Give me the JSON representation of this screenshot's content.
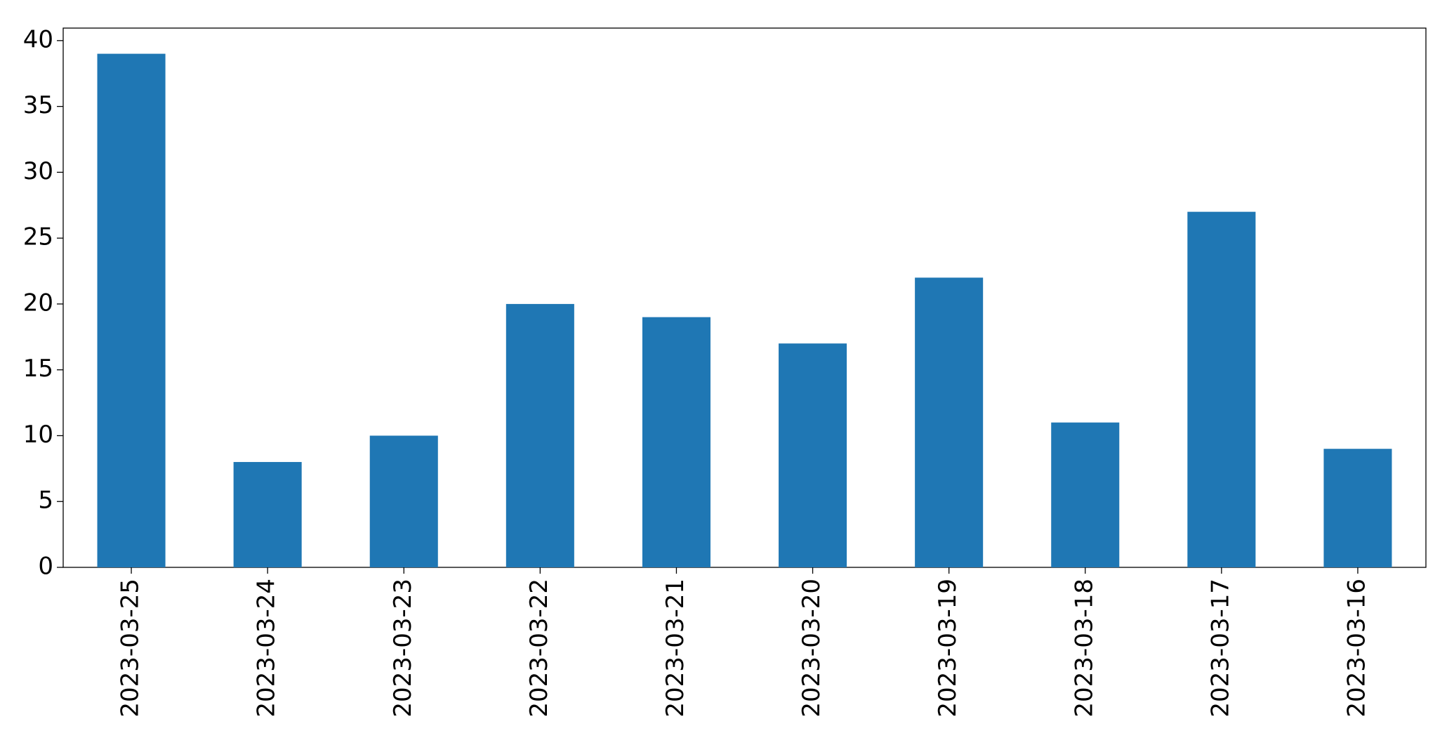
{
  "chart_data": {
    "type": "bar",
    "categories": [
      "2023-03-25",
      "2023-03-24",
      "2023-03-23",
      "2023-03-22",
      "2023-03-21",
      "2023-03-20",
      "2023-03-19",
      "2023-03-18",
      "2023-03-17",
      "2023-03-16"
    ],
    "values": [
      39,
      8,
      10,
      20,
      19,
      17,
      22,
      11,
      27,
      9
    ],
    "color": "#1f77b4",
    "ylim": [
      0,
      40.95
    ],
    "yticks": [
      0,
      5,
      10,
      15,
      20,
      25,
      30,
      35,
      40
    ],
    "grid": false
  }
}
